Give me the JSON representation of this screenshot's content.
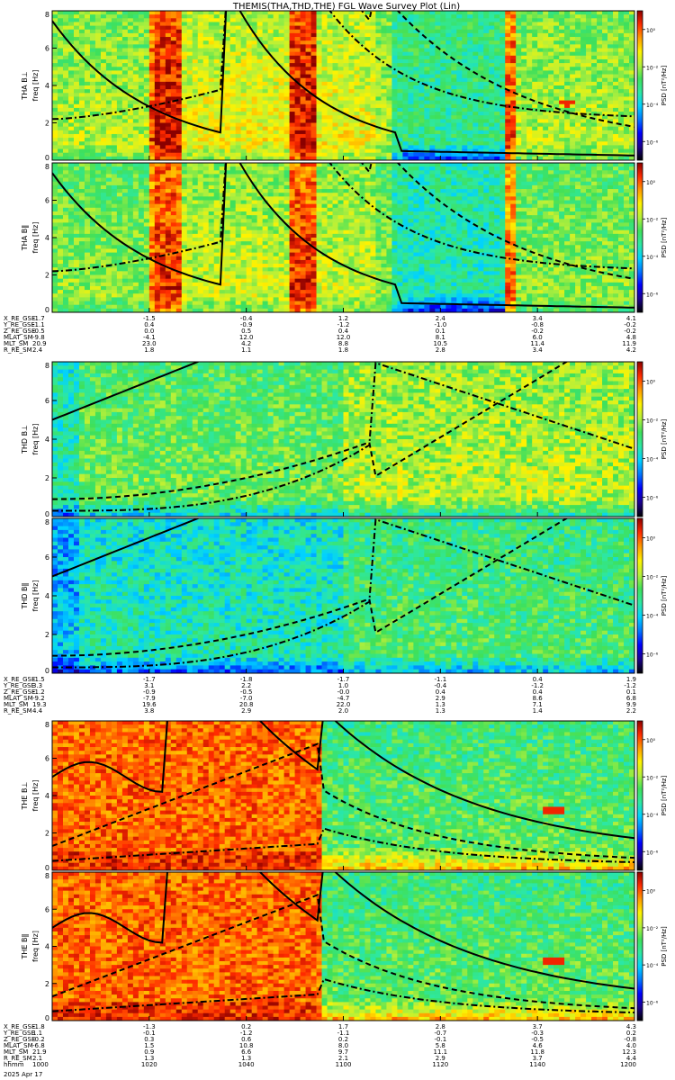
{
  "title": "THEMIS(THA,THD,THE) FGL Wave Survey Plot (Lin)",
  "date_label": "2025 Apr 17",
  "colors": {
    "colormap": [
      "#000000",
      "#1a008f",
      "#0000ff",
      "#0077ff",
      "#00d2ff",
      "#2ee8a0",
      "#3fe05a",
      "#b6f03a",
      "#fff200",
      "#ff9a00",
      "#ff2a00",
      "#8a0000"
    ],
    "curve": "#000000",
    "frame": "#000000"
  },
  "chart_data": {
    "type": "heatmap",
    "panels": [
      {
        "id": "tha_bl",
        "ylabel": "THA B⊥",
        "freq_label": "freq [Hz]",
        "yticks": [
          "0",
          "2",
          "4",
          "6",
          "8"
        ],
        "ylim": [
          0,
          8
        ],
        "cbar_label": "PSD [nT²/Hz]",
        "cbar_ticks": [
          "10⁰",
          "10⁻²",
          "10⁻⁴",
          "10⁻⁶"
        ],
        "cbar_range": [
          -7,
          1
        ],
        "station": "tha",
        "comp": "perp"
      },
      {
        "id": "tha_bll",
        "ylabel": "THA B‖",
        "freq_label": "freq [Hz]",
        "yticks": [
          "0",
          "2",
          "4",
          "6",
          "8"
        ],
        "ylim": [
          0,
          8
        ],
        "cbar_label": "PSD [nT²/Hz]",
        "cbar_ticks": [
          "10⁰",
          "10⁻²",
          "10⁻⁴",
          "10⁻⁶"
        ],
        "cbar_range": [
          -7,
          1
        ],
        "station": "tha",
        "comp": "para"
      },
      {
        "id": "thd_bl",
        "ylabel": "THD B⊥",
        "freq_label": "freq [Hz]",
        "yticks": [
          "0",
          "2",
          "4",
          "6",
          "8"
        ],
        "ylim": [
          0,
          8
        ],
        "cbar_label": "PSD [nT²/Hz]",
        "cbar_ticks": [
          "10⁰",
          "10⁻²",
          "10⁻⁴",
          "10⁻⁶"
        ],
        "cbar_range": [
          -7,
          1
        ],
        "station": "thd",
        "comp": "perp"
      },
      {
        "id": "thd_bll",
        "ylabel": "THD B‖",
        "freq_label": "freq [Hz]",
        "yticks": [
          "0",
          "2",
          "4",
          "6",
          "8"
        ],
        "ylim": [
          0,
          8
        ],
        "cbar_label": "PSD [nT²/Hz]",
        "cbar_ticks": [
          "10⁰",
          "10⁻²",
          "10⁻⁴",
          "10⁻⁶"
        ],
        "cbar_range": [
          -7,
          1
        ],
        "station": "thd",
        "comp": "para"
      },
      {
        "id": "the_bl",
        "ylabel": "THE B⊥",
        "freq_label": "freq [Hz]",
        "yticks": [
          "0",
          "2",
          "4",
          "6",
          "8"
        ],
        "ylim": [
          0,
          8
        ],
        "cbar_label": "PSD [nT²/Hz]",
        "cbar_ticks": [
          "10⁰",
          "10⁻²",
          "10⁻⁴",
          "10⁻⁶"
        ],
        "cbar_range": [
          -7,
          1
        ],
        "station": "the",
        "comp": "perp"
      },
      {
        "id": "the_bll",
        "ylabel": "THE B‖",
        "freq_label": "freq [Hz]",
        "yticks": [
          "0",
          "2",
          "4",
          "6",
          "8"
        ],
        "ylim": [
          0,
          8
        ],
        "cbar_label": "PSD [nT²/Hz]",
        "cbar_ticks": [
          "10⁰",
          "10⁻²",
          "10⁻⁴",
          "10⁻⁶"
        ],
        "cbar_range": [
          -7,
          1
        ],
        "station": "the",
        "comp": "para"
      }
    ],
    "ephemeris": [
      {
        "station": "tha",
        "rows": [
          {
            "label": "X_RE_GSE",
            "values": [
              "-1.7",
              "-1.5",
              "-0.4",
              "1.2",
              "2.4",
              "3.4",
              "4.1"
            ]
          },
          {
            "label": "Y_RE_GSE",
            "values": [
              "-1.1",
              "0.4",
              "-0.9",
              "-1.2",
              "-1.0",
              "-0.8",
              "-0.2"
            ]
          },
          {
            "label": "Z_RE_GSE",
            "values": [
              "-0.5",
              "0.0",
              "0.5",
              "0.4",
              "0.1",
              "-0.2",
              "-0.2"
            ]
          },
          {
            "label": "MLAT_SM",
            "values": [
              "-9.8",
              "-4.1",
              "12.0",
              "12.0",
              "8.1",
              "6.0",
              "4.8"
            ]
          },
          {
            "label": "MLT_SM",
            "values": [
              "20.9",
              "23.0",
              "4.2",
              "8.8",
              "10.5",
              "11.4",
              "11.9"
            ]
          },
          {
            "label": "R_RE_SM",
            "values": [
              "2.4",
              "1.8",
              "1.1",
              "1.8",
              "2.8",
              "3.4",
              "4.2"
            ]
          }
        ]
      },
      {
        "station": "thd",
        "rows": [
          {
            "label": "X_RE_GSE",
            "values": [
              "-1.5",
              "-1.7",
              "-1.8",
              "-1.7",
              "-1.1",
              "0.4",
              "1.9"
            ]
          },
          {
            "label": "Y_RE_GSE",
            "values": [
              "3.3",
              "3.1",
              "2.2",
              "1.0",
              "-0.4",
              "-1.2",
              "-1.2"
            ]
          },
          {
            "label": "Z_RE_GSE",
            "values": [
              "-1.2",
              "-0.9",
              "-0.5",
              "-0.0",
              "0.4",
              "0.4",
              "0.1"
            ]
          },
          {
            "label": "MLAT_SM",
            "values": [
              "-9.2",
              "-7.9",
              "-7.0",
              "-4.7",
              "2.9",
              "8.6",
              "6.8"
            ]
          },
          {
            "label": "MLT_SM",
            "values": [
              "19.3",
              "19.6",
              "20.8",
              "22.0",
              "1.3",
              "7.1",
              "9.9"
            ]
          },
          {
            "label": "R_RE_SM",
            "values": [
              "4.4",
              "3.8",
              "2.9",
              "2.0",
              "1.3",
              "1.4",
              "2.2"
            ]
          }
        ]
      },
      {
        "station": "the",
        "rows": [
          {
            "label": "X_RE_GSE",
            "values": [
              "-1.8",
              "-1.3",
              "0.2",
              "1.7",
              "2.8",
              "3.7",
              "4.3"
            ]
          },
          {
            "label": "Y_RE_GSE",
            "values": [
              "1.1",
              "-0.1",
              "-1.2",
              "-1.1",
              "-0.7",
              "-0.3",
              "0.2"
            ]
          },
          {
            "label": "Z_RE_GSE",
            "values": [
              "-0.2",
              "0.3",
              "0.6",
              "0.2",
              "-0.1",
              "-0.5",
              "-0.8"
            ]
          },
          {
            "label": "MLAT_SM",
            "values": [
              "-6.8",
              "1.5",
              "10.8",
              "8.0",
              "5.8",
              "4.6",
              "4.0"
            ]
          },
          {
            "label": "MLT_SM",
            "values": [
              "21.9",
              "0.9",
              "6.6",
              "9.7",
              "11.1",
              "11.8",
              "12.3"
            ]
          },
          {
            "label": "R_RE_SM",
            "values": [
              "2.1",
              "1.3",
              "1.3",
              "2.1",
              "2.9",
              "3.7",
              "4.4"
            ]
          },
          {
            "label": "hhmm",
            "values": [
              "1000",
              "1020",
              "1040",
              "1100",
              "1120",
              "1140",
              "1200"
            ]
          }
        ]
      }
    ]
  }
}
